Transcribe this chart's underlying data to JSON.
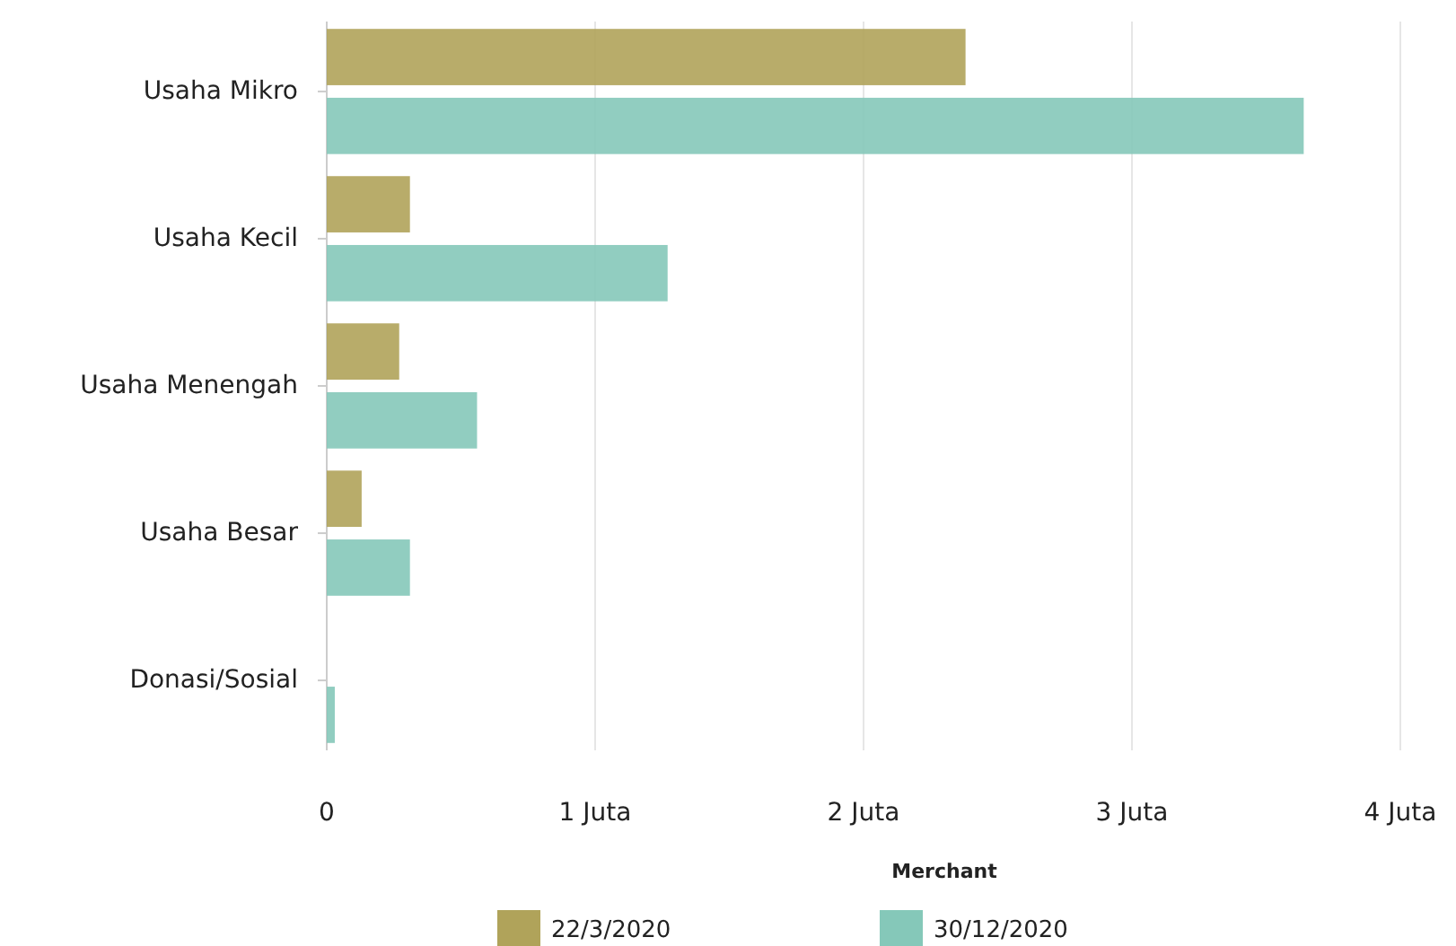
{
  "chart_data": {
    "type": "bar",
    "orientation": "horizontal",
    "xlabel": "Merchant",
    "categories": [
      "Usaha Mikro",
      "Usaha Kecil",
      "Usaha Menengah",
      "Usaha Besar",
      "Donasi/Sosial"
    ],
    "series": [
      {
        "name": "22/3/2020",
        "color": "#b0a35a",
        "values": [
          2.38,
          0.31,
          0.27,
          0.13,
          0
        ]
      },
      {
        "name": "30/12/2020",
        "color": "#85c8b9",
        "values": [
          3.64,
          1.27,
          0.56,
          0.31,
          0.03
        ]
      }
    ],
    "xlim": [
      0,
      4
    ],
    "xticks": [
      0,
      {
        "value": 1,
        "label": "1 Juta"
      },
      {
        "value": 2,
        "label": "2 Juta"
      },
      {
        "value": 3,
        "label": "3 Juta"
      },
      {
        "value": 4,
        "label": "4 Juta"
      }
    ],
    "grid": "x",
    "legend": "bottom"
  }
}
